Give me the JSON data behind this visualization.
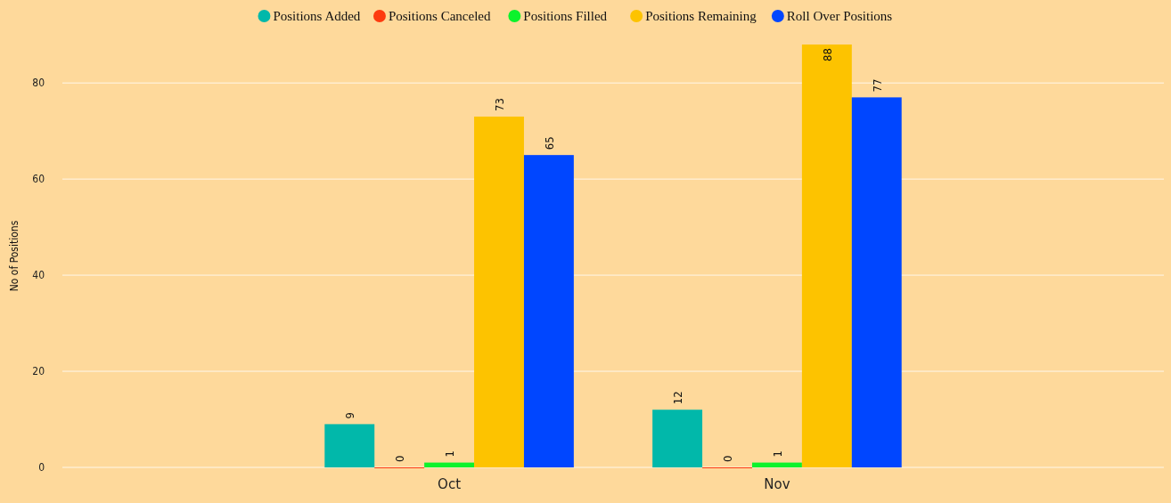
{
  "chart_data": {
    "type": "bar",
    "ylabel": "No of Positions",
    "categories": [
      "Oct",
      "Nov"
    ],
    "series": [
      {
        "name": "Positions Added",
        "color": "#01b8aa",
        "values": [
          9,
          12
        ]
      },
      {
        "name": "Positions Canceled",
        "color": "#fd3a0f",
        "values": [
          0,
          0
        ]
      },
      {
        "name": "Positions Filled",
        "color": "#0cf22c",
        "values": [
          1,
          1
        ]
      },
      {
        "name": "Positions Remaining",
        "color": "#fdc300",
        "values": [
          73,
          88
        ]
      },
      {
        "name": "Roll Over Positions",
        "color": "#0046ff",
        "values": [
          65,
          77
        ]
      }
    ],
    "ylim": [
      0,
      88
    ],
    "yticks": [
      0,
      20,
      40,
      60,
      80
    ],
    "grid": "y",
    "legend": "top",
    "data_labels": true
  }
}
